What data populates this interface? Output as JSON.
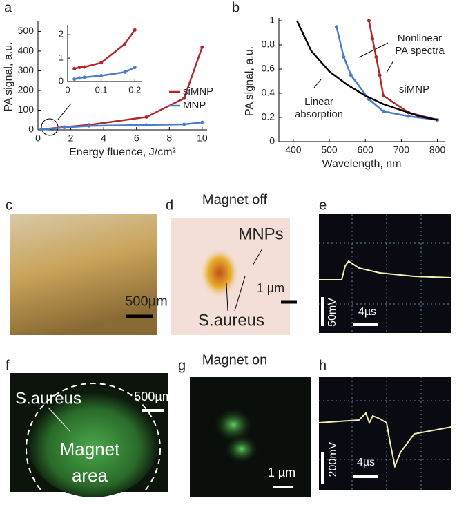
{
  "chart_data": [
    {
      "type": "line",
      "panel_label": "a",
      "xlabel": "Energy fluence, J/cm²",
      "ylabel": "PA signal, a.u.",
      "xlim": [
        0,
        10.3
      ],
      "xticks": [
        0,
        2,
        4,
        6,
        8,
        10
      ],
      "ylim": [
        0,
        540
      ],
      "yticks": [
        0,
        100,
        200,
        300,
        400,
        500
      ],
      "legend": "right",
      "series": [
        {
          "name": "siMNP",
          "color": "#b3262a",
          "x": [
            0.2,
            1.6,
            3.1,
            6.6,
            8.9,
            10
          ],
          "values": [
            2,
            14,
            25,
            65,
            160,
            420
          ]
        },
        {
          "name": "MNP",
          "color": "#4a7cc7",
          "x": [
            0.2,
            1.6,
            3.1,
            6.6,
            8.9,
            10
          ],
          "values": [
            1,
            12,
            20,
            25,
            28,
            38
          ]
        }
      ]
    },
    {
      "type": "line",
      "xlim": [
        0,
        0.22
      ],
      "xticks": [
        0,
        0.1,
        0.2
      ],
      "ylim": [
        0,
        2.3
      ],
      "yticks": [
        0,
        1,
        2
      ],
      "series": [
        {
          "color": "#b3262a",
          "x": [
            0.02,
            0.035,
            0.05,
            0.1,
            0.17,
            0.2
          ],
          "values": [
            0.55,
            0.6,
            0.62,
            0.8,
            1.6,
            2.2
          ]
        },
        {
          "color": "#4a7cc7",
          "x": [
            0.02,
            0.035,
            0.05,
            0.1,
            0.17,
            0.2
          ],
          "values": [
            0.1,
            0.15,
            0.18,
            0.25,
            0.4,
            0.6
          ]
        }
      ]
    },
    {
      "type": "line",
      "panel_label": "b",
      "xlabel": "Wavelength, nm",
      "ylabel": "PA signal, a.u.",
      "xlim": [
        360,
        820
      ],
      "xticks": [
        400,
        500,
        600,
        700,
        800
      ],
      "ylim": [
        0,
        1
      ],
      "yticks": [
        0,
        0.2,
        0.4,
        0.6,
        0.8,
        1
      ],
      "annotations": [
        [
          "Nonlinear",
          "PA spectra"
        ],
        [
          "siMNP"
        ],
        [
          "Linear",
          "absorption"
        ]
      ],
      "series": [
        {
          "color": "#b3262a",
          "x": [
            610,
            620,
            630,
            640,
            650,
            720,
            800
          ],
          "values": [
            1,
            0.85,
            0.7,
            0.55,
            0.38,
            0.24,
            0.18
          ]
        },
        {
          "color": "#4a7cc7",
          "x": [
            520,
            540,
            560,
            610,
            650,
            720,
            800
          ],
          "values": [
            0.95,
            0.7,
            0.55,
            0.35,
            0.25,
            0.21,
            0.18
          ]
        },
        {
          "color": "#000000",
          "x": [
            410,
            450,
            500,
            550,
            600,
            650,
            700,
            750,
            800
          ],
          "values": [
            1,
            0.75,
            0.58,
            0.47,
            0.38,
            0.31,
            0.26,
            0.21,
            0.18
          ]
        }
      ]
    }
  ],
  "panels": {
    "c": {
      "label": "c",
      "scale_bar": "500µm"
    },
    "d": {
      "label": "d",
      "title": "Magnet off",
      "labels": [
        "MNPs",
        "S.aureus"
      ],
      "scale_bar": "1 µm"
    },
    "e": {
      "label": "e",
      "voltage": "50mV",
      "time": "4µs"
    },
    "f": {
      "label": "f",
      "labels": [
        "S.aureus",
        "Magnet",
        "area"
      ],
      "scale_bar": "500µm"
    },
    "g": {
      "label": "g",
      "title": "Magnet on",
      "scale_bar": "1 µm"
    },
    "h": {
      "label": "h",
      "voltage": "200mV",
      "time": "4µs"
    }
  }
}
